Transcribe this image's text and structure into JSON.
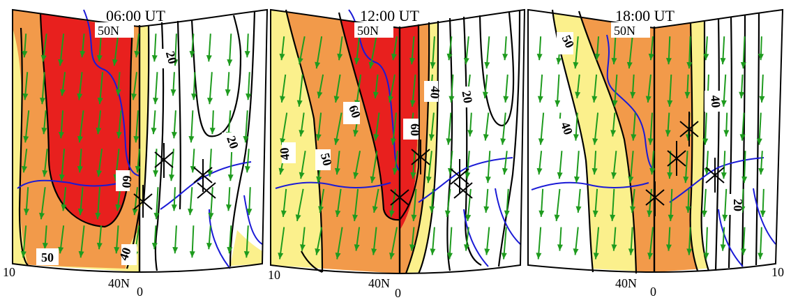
{
  "panels": [
    {
      "title": "06:00 UT",
      "lat_top": "50N",
      "lat_bottom": "40N",
      "lon_left": "10",
      "lon_center": "0",
      "lon_right": "",
      "contour_labels": [
        "20",
        "20",
        "60",
        "40",
        "50"
      ]
    },
    {
      "title": "12:00 UT",
      "lat_top": "50N",
      "lat_bottom": "40N",
      "lon_left": "10",
      "lon_center": "0",
      "lon_right": "",
      "contour_labels": [
        "40",
        "20",
        "60",
        "60",
        "40",
        "50"
      ]
    },
    {
      "title": "18:00 UT",
      "lat_top": "50N",
      "lat_bottom": "40N",
      "lon_left": "",
      "lon_center": "0",
      "lon_right": "10",
      "contour_labels": [
        "50",
        "40",
        "40",
        "20"
      ]
    }
  ],
  "colors": {
    "band_60_plus": "#e8201e",
    "band_50_60": "#f29a4a",
    "band_40_50": "#fbf08c",
    "below_40": "#ffffff",
    "wind_arrows": "#1e9b1e",
    "coastline": "#1a1ad6",
    "contours": "#000000"
  },
  "icons": {
    "wind_vector": "green-arrow-icon",
    "station_marker": "x-cross-icon"
  }
}
